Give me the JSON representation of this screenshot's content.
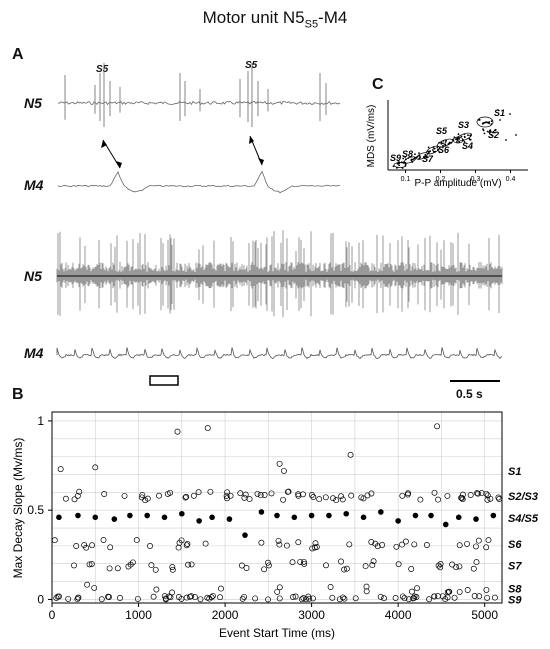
{
  "figure": {
    "title_main": "Motor unit N5",
    "title_sub": "S5",
    "title_tail": "-M4",
    "panel_a": "A",
    "panel_b": "B",
    "panel_c": "C",
    "trace_n5": "N5",
    "trace_m4": "M4",
    "trace_n5_long": "N5",
    "trace_m4_long": "M4",
    "s5_marker_1": "S5",
    "s5_marker_2": "S5",
    "scale_label": "0.5 s"
  },
  "chart_data": [
    {
      "type": "scatter",
      "xlabel": "P-P amplitude (mV)",
      "ylabel": "MDS (mV/ms)",
      "xticks": [
        "0.1",
        "0.2",
        "0.3",
        "0.4"
      ],
      "cluster_labels": [
        "S1",
        "S2",
        "S3",
        "S4",
        "S5",
        "S6",
        "S7",
        "S8",
        "S9"
      ]
    },
    {
      "type": "scatter",
      "xlabel": "Event Start Time  (ms)",
      "ylabel": "Max Decay Slope  (Mv/ms)",
      "xlim": [
        0,
        5200
      ],
      "ylim": [
        -0.02,
        1.05
      ],
      "xticks": [
        "0",
        "1000",
        "2000",
        "3000",
        "4000",
        "5000"
      ],
      "yticks": [
        "0",
        "0.5",
        "1"
      ],
      "grid": true,
      "band_labels": [
        "S1",
        "S2/S3",
        "S4/S5",
        "S6",
        "S7",
        "S8",
        "S9"
      ],
      "bands": [
        {
          "name": "S1",
          "y": 0.72,
          "filled": false
        },
        {
          "name": "S2/S3",
          "y": 0.58,
          "filled": false
        },
        {
          "name": "S4/S5",
          "y": 0.455,
          "filled": true
        },
        {
          "name": "S6",
          "y": 0.31,
          "filled": false
        },
        {
          "name": "S7",
          "y": 0.19,
          "filled": false
        },
        {
          "name": "S8",
          "y": 0.06,
          "filled": false
        },
        {
          "name": "S9",
          "y": 0.01,
          "filled": false
        }
      ],
      "filled_points": [
        [
          80,
          0.46
        ],
        [
          300,
          0.47
        ],
        [
          500,
          0.46
        ],
        [
          720,
          0.45
        ],
        [
          900,
          0.47
        ],
        [
          1100,
          0.47
        ],
        [
          1300,
          0.46
        ],
        [
          1500,
          0.48
        ],
        [
          1700,
          0.44
        ],
        [
          1850,
          0.46
        ],
        [
          2050,
          0.45
        ],
        [
          2230,
          0.36
        ],
        [
          2420,
          0.49
        ],
        [
          2600,
          0.47
        ],
        [
          2800,
          0.46
        ],
        [
          3000,
          0.47
        ],
        [
          3200,
          0.47
        ],
        [
          3400,
          0.48
        ],
        [
          3600,
          0.46
        ],
        [
          3800,
          0.49
        ],
        [
          4000,
          0.44
        ],
        [
          4200,
          0.47
        ],
        [
          4380,
          0.47
        ],
        [
          4550,
          0.42
        ],
        [
          4700,
          0.46
        ],
        [
          4900,
          0.45
        ],
        [
          5100,
          0.47
        ]
      ],
      "outlier_points": [
        [
          100,
          0.73
        ],
        [
          500,
          0.74
        ],
        [
          1450,
          0.94
        ],
        [
          1800,
          0.96
        ],
        [
          2630,
          0.76
        ],
        [
          2680,
          0.72
        ],
        [
          3450,
          0.81
        ],
        [
          4450,
          0.97
        ]
      ]
    }
  ]
}
